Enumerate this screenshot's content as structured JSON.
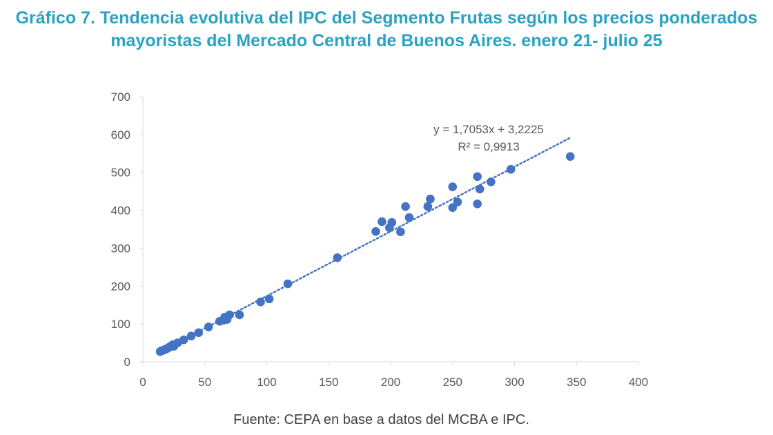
{
  "title": "Gráfico 7. Tendencia evolutiva del IPC del Segmento Frutas según los precios ponderados mayoristas del Mercado Central de Buenos Aires. enero 21- julio 25",
  "source": "Fuente: CEPA en base a datos del MCBA e IPC.",
  "colors": {
    "title": "#2AA3C2",
    "points": "#4472C4",
    "trendline": "#4472C4",
    "axis": "#D9D9D9"
  },
  "chart_data": {
    "type": "scatter",
    "title": "Gráfico 7. Tendencia evolutiva del IPC del Segmento Frutas según los precios ponderados mayoristas del Mercado Central de Buenos Aires. enero 21- julio 25",
    "xlabel": "",
    "ylabel": "",
    "xlim": [
      0,
      400
    ],
    "ylim": [
      0,
      700
    ],
    "x_ticks": [
      "0",
      "50",
      "100",
      "150",
      "200",
      "250",
      "300",
      "350",
      "400"
    ],
    "y_ticks": [
      "0",
      "100",
      "200",
      "300",
      "400",
      "500",
      "600",
      "700"
    ],
    "grid": false,
    "legend": "none",
    "trendline": {
      "style": "dotted",
      "slope": 1.7053,
      "intercept": 3.2225,
      "x_range": [
        14,
        345
      ],
      "equation_label": "y = 1,7053x + 3,2225",
      "r2_label": "R² = 0,9913"
    },
    "points": [
      {
        "x": 14,
        "y": 27
      },
      {
        "x": 15,
        "y": 29
      },
      {
        "x": 16,
        "y": 30
      },
      {
        "x": 17,
        "y": 31
      },
      {
        "x": 18,
        "y": 33
      },
      {
        "x": 19,
        "y": 34
      },
      {
        "x": 20,
        "y": 36
      },
      {
        "x": 21,
        "y": 38
      },
      {
        "x": 22,
        "y": 40
      },
      {
        "x": 23,
        "y": 42
      },
      {
        "x": 24,
        "y": 45
      },
      {
        "x": 25,
        "y": 41
      },
      {
        "x": 28,
        "y": 50
      },
      {
        "x": 33,
        "y": 58
      },
      {
        "x": 39,
        "y": 68
      },
      {
        "x": 45,
        "y": 77
      },
      {
        "x": 53,
        "y": 92
      },
      {
        "x": 62,
        "y": 107
      },
      {
        "x": 65,
        "y": 110
      },
      {
        "x": 66,
        "y": 118
      },
      {
        "x": 68,
        "y": 112
      },
      {
        "x": 70,
        "y": 124
      },
      {
        "x": 78,
        "y": 124
      },
      {
        "x": 95,
        "y": 158
      },
      {
        "x": 102,
        "y": 166
      },
      {
        "x": 117,
        "y": 206
      },
      {
        "x": 157,
        "y": 275
      },
      {
        "x": 188,
        "y": 344
      },
      {
        "x": 193,
        "y": 370
      },
      {
        "x": 199,
        "y": 354
      },
      {
        "x": 201,
        "y": 368
      },
      {
        "x": 208,
        "y": 343
      },
      {
        "x": 212,
        "y": 410
      },
      {
        "x": 215,
        "y": 381
      },
      {
        "x": 230,
        "y": 410
      },
      {
        "x": 232,
        "y": 430
      },
      {
        "x": 250,
        "y": 407
      },
      {
        "x": 250,
        "y": 462
      },
      {
        "x": 254,
        "y": 422
      },
      {
        "x": 270,
        "y": 417
      },
      {
        "x": 270,
        "y": 489
      },
      {
        "x": 272,
        "y": 456
      },
      {
        "x": 281,
        "y": 475
      },
      {
        "x": 297,
        "y": 508
      },
      {
        "x": 345,
        "y": 542
      }
    ]
  }
}
